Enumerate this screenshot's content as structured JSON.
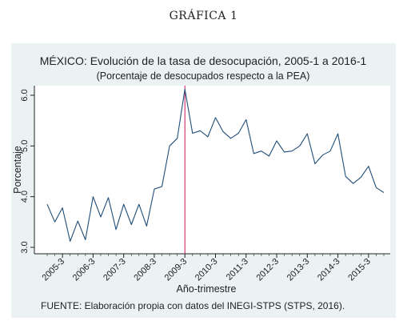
{
  "caption": "GRÁFICA 1",
  "source_note": "FUENTE: Elaboración propia con datos del INEGI-STPS (STPS, 2016).",
  "colors": {
    "panel": "#eaf2f3",
    "plot_bg": "#ffffff",
    "line": "#1f4e79",
    "vline": "#c2185b",
    "grid": "#e0e6e8"
  },
  "chart_data": {
    "type": "line",
    "title": "MÉXICO: Evolución de la tasa de desocupación, 2005-1 a 2016-1",
    "subtitle": "(Porcentaje de desocupados respecto a la PEA)",
    "xlabel": "Año-trimestre",
    "ylabel": "Porcentaje",
    "ylim": [
      3.0,
      6.0
    ],
    "yticks": [
      "3.0",
      "4.0",
      "5.0",
      "6.0"
    ],
    "xticks": [
      "2005-3",
      "2006-3",
      "2007-3",
      "2008-3",
      "2009-3",
      "2010-3",
      "2011-3",
      "2012-3",
      "2013-3",
      "2014-3",
      "2015-3"
    ],
    "vertical_line_at": "2009-3",
    "grid": false,
    "legend": "none",
    "x": [
      "2005-1",
      "2005-2",
      "2005-3",
      "2005-4",
      "2006-1",
      "2006-2",
      "2006-3",
      "2006-4",
      "2007-1",
      "2007-2",
      "2007-3",
      "2007-4",
      "2008-1",
      "2008-2",
      "2008-3",
      "2008-4",
      "2009-1",
      "2009-2",
      "2009-3",
      "2009-4",
      "2010-1",
      "2010-2",
      "2010-3",
      "2010-4",
      "2011-1",
      "2011-2",
      "2011-3",
      "2011-4",
      "2012-1",
      "2012-2",
      "2012-3",
      "2012-4",
      "2013-1",
      "2013-2",
      "2013-3",
      "2013-4",
      "2014-1",
      "2014-2",
      "2014-3",
      "2014-4",
      "2015-1",
      "2015-2",
      "2015-3",
      "2015-4",
      "2016-1"
    ],
    "series": [
      {
        "values": [
          3.85,
          3.5,
          3.78,
          3.12,
          3.52,
          3.15,
          4.0,
          3.6,
          3.98,
          3.35,
          3.85,
          3.45,
          3.85,
          3.42,
          4.15,
          4.2,
          5.0,
          5.15,
          6.12,
          5.25,
          5.3,
          5.18,
          5.56,
          5.28,
          5.15,
          5.25,
          5.52,
          4.85,
          4.9,
          4.8,
          5.1,
          4.88,
          4.9,
          5.0,
          5.24,
          4.65,
          4.82,
          4.9,
          5.24,
          4.4,
          4.26,
          4.38,
          4.6,
          4.18,
          4.08
        ]
      }
    ]
  }
}
